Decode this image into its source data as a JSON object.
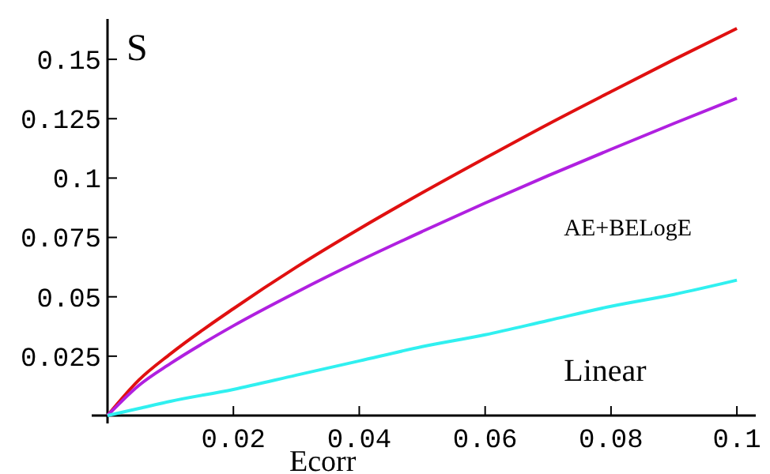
{
  "chart_data": {
    "type": "line",
    "xlabel": "Ecorr",
    "ylabel": "S",
    "x": [
      0,
      0.005,
      0.01,
      0.02,
      0.03,
      0.04,
      0.05,
      0.06,
      0.07,
      0.08,
      0.09,
      0.1
    ],
    "series": [
      {
        "color": "#e01010",
        "values": [
          0,
          0.015,
          0.026,
          0.045,
          0.0625,
          0.0786,
          0.0938,
          0.1084,
          0.1227,
          0.1364,
          0.1499,
          0.163
        ]
      },
      {
        "name": "AE+BELogE",
        "color": "#b020e0",
        "values": [
          0,
          0.0127,
          0.0219,
          0.0378,
          0.0519,
          0.0651,
          0.0775,
          0.0895,
          0.101,
          0.1121,
          0.123,
          0.1336
        ]
      },
      {
        "name": "Linear",
        "color": "#30f0f0",
        "values": [
          0,
          0.003,
          0.006,
          0.011,
          0.017,
          0.023,
          0.029,
          0.034,
          0.04,
          0.046,
          0.051,
          0.057
        ]
      }
    ],
    "xlim": [
      0,
      0.103
    ],
    "ylim": [
      0,
      0.167
    ],
    "xticks": [
      0.02,
      0.04,
      0.06,
      0.08,
      0.1
    ],
    "yticks": [
      0.025,
      0.05,
      0.075,
      0.1,
      0.125,
      0.15
    ],
    "grid": false,
    "marker": "none",
    "line_style": "solid"
  }
}
